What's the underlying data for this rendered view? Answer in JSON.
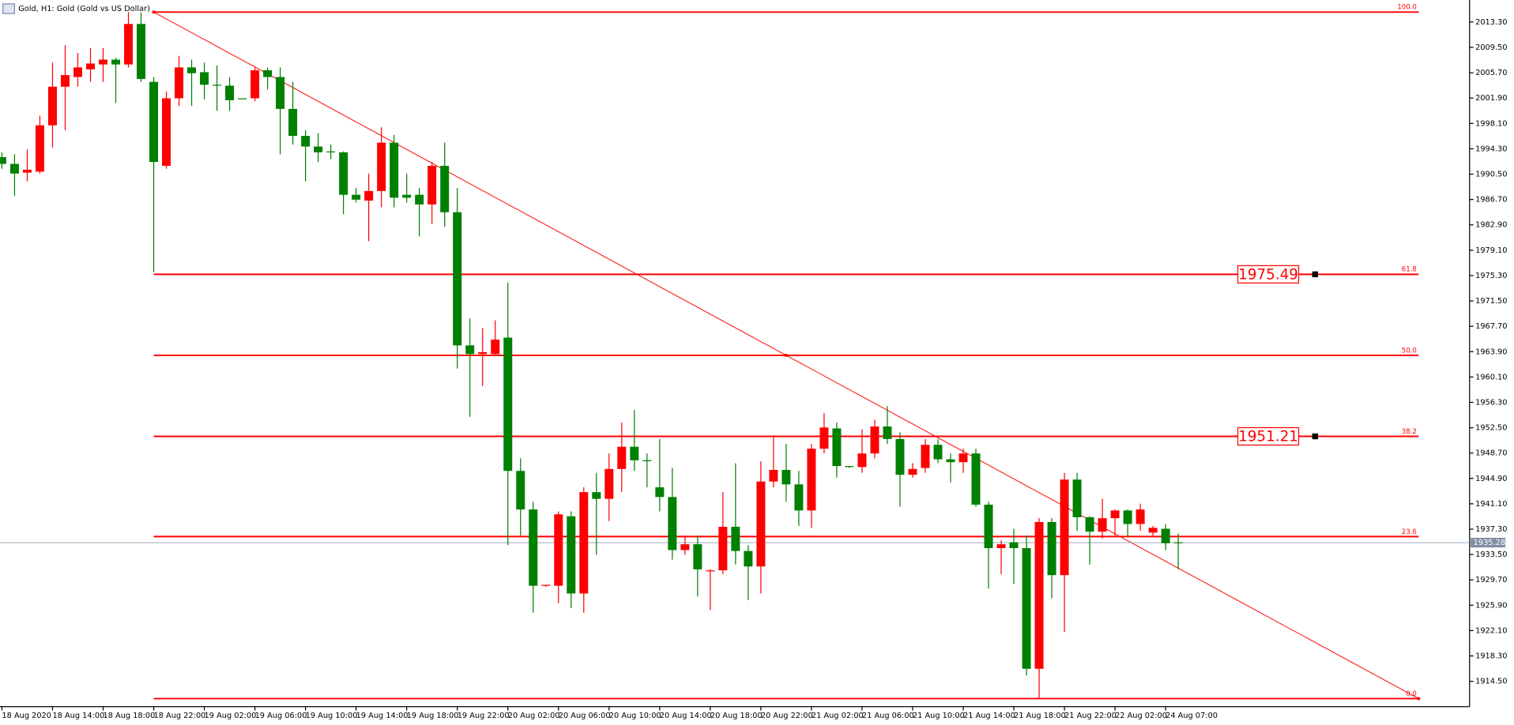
{
  "chart_data": {
    "type": "candlestick",
    "title": "Gold, H1:  Gold (Gold vs US Dollar)",
    "categories": [
      "18 Aug 2020",
      null,
      null,
      null,
      "18 Aug 14:00",
      null,
      null,
      null,
      "18 Aug 18:00",
      null,
      null,
      null,
      "18 Aug 22:00",
      null,
      null,
      null,
      "19 Aug 02:00",
      null,
      null,
      null,
      "19 Aug 06:00",
      null,
      null,
      null,
      "19 Aug 10:00",
      null,
      null,
      null,
      "19 Aug 14:00",
      null,
      null,
      null,
      "19 Aug 18:00",
      null,
      null,
      null,
      "19 Aug 22:00",
      null,
      null,
      null,
      "20 Aug 02:00",
      null,
      null,
      null,
      "20 Aug 06:00",
      null,
      null,
      null,
      "20 Aug 10:00",
      null,
      null,
      null,
      "20 Aug 14:00",
      null,
      null,
      null,
      "20 Aug 18:00",
      null,
      null,
      null,
      "20 Aug 22:00",
      null,
      null,
      null,
      "21 Aug 02:00",
      null,
      null,
      null,
      "21 Aug 06:00",
      null,
      null,
      null,
      "21 Aug 10:00",
      null,
      null,
      null,
      "21 Aug 14:00",
      null,
      null,
      null,
      "21 Aug 18:00",
      null,
      null,
      null,
      "21 Aug 22:00",
      null,
      null,
      null,
      "22 Aug 02:00",
      null,
      null,
      null,
      "24 Aug 07:00",
      null
    ],
    "open": [
      1993.05,
      1992.04,
      1990.73,
      1990.88,
      1997.82,
      2003.61,
      2005.06,
      2006.21,
      2006.94,
      2007.66,
      2006.94,
      2013.01,
      2004.33,
      1991.75,
      2001.87,
      2006.5,
      2005.78,
      2003.9,
      2003.76,
      2001.87,
      2001.87,
      2006.07,
      2005.06,
      2000.28,
      1996.23,
      1994.64,
      1993.91,
      1993.77,
      1987.41,
      1986.54,
      1987.98,
      1995.22,
      1987.41,
      1987.41,
      1985.96,
      1991.75,
      1984.8,
      1964.84,
      1963.54,
      1963.54,
      1966.0,
      1946.03,
      1940.25,
      1928.82,
      1928.82,
      1939.23,
      1927.66,
      1942.85,
      1941.84,
      1946.32,
      1949.65,
      1947.63,
      1943.57,
      1942.12,
      1934.17,
      1935.04,
      1930.99,
      1931.13,
      1937.65,
      1934.03,
      1931.71,
      1944.44,
      1946.18,
      1944.01,
      1940.1,
      1949.36,
      1952.4,
      1946.76,
      1946.61,
      1948.64,
      1952.69,
      1950.81,
      1945.45,
      1946.47,
      1949.94,
      1947.77,
      1947.34,
      1948.64,
      1940.97,
      1934.46,
      1935.33,
      1934.46,
      1916.38,
      1938.37,
      1930.41,
      1944.73,
      1939.09,
      1936.92,
      1938.94,
      1940.1,
      1938.08,
      1936.78,
      1937.36,
      1935.33
    ],
    "high": [
      1993.77,
      1993.48,
      1994.2,
      1999.27,
      2007.23,
      2009.83,
      2008.67,
      2009.4,
      2009.4,
      2007.95,
      2014.79,
      2014.75,
      2005.06,
      2002.89,
      2008.24,
      2007.66,
      2007.23,
      2006.79,
      2005.06,
      2001.87,
      2006.5,
      2006.5,
      2006.5,
      2004.33,
      1997.1,
      1996.67,
      1994.93,
      1993.91,
      1988.42,
      1990.59,
      1997.53,
      1996.38,
      1990.59,
      1988.42,
      1992.33,
      1995.22,
      1988.42,
      1968.89,
      1967.44,
      1968.6,
      1974.24,
      1947.91,
      1941.4,
      1928.96,
      1939.96,
      1939.96,
      1943.57,
      1945.74,
      1948.64,
      1953.27,
      1955.15,
      1948.64,
      1950.81,
      1946.47,
      1936.34,
      1936.34,
      1931.28,
      1942.85,
      1947.19,
      1934.9,
      1947.48,
      1951.24,
      1950.08,
      1946.03,
      1950.08,
      1954.72,
      1953.27,
      1946.76,
      1952.25,
      1953.7,
      1955.72,
      1951.82,
      1947.19,
      1950.81,
      1950.81,
      1948.64,
      1949.36,
      1949.36,
      1941.4,
      1935.62,
      1937.36,
      1936.34,
      1938.94,
      1938.94,
      1945.74,
      1945.74,
      1939.23,
      1941.84,
      1940.25,
      1940.25,
      1941.12,
      1937.79,
      1938.08,
      1936.63
    ],
    "low": [
      1991.31,
      1987.26,
      1989.43,
      1990.59,
      1994.49,
      1997.1,
      2003.61,
      2004.33,
      2004.33,
      2001.15,
      2006.5,
      2004.33,
      1975.83,
      1991.31,
      2000.71,
      2000.71,
      2001.73,
      1999.99,
      1999.99,
      2001.73,
      2001.44,
      2003.18,
      1993.48,
      1994.93,
      1989.43,
      1992.33,
      1992.76,
      1984.51,
      1986.25,
      1980.46,
      1985.52,
      1985.52,
      1986.25,
      1981.19,
      1983.07,
      1982.63,
      1961.37,
      1954.13,
      1958.76,
      1963.39,
      1934.9,
      1936.34,
      1924.77,
      1928.67,
      1926.22,
      1925.49,
      1924.77,
      1933.45,
      1938.51,
      1942.85,
      1946.03,
      1943.57,
      1939.96,
      1932.73,
      1933.45,
      1927.23,
      1925.2,
      1930.55,
      1932.0,
      1926.65,
      1927.66,
      1943.57,
      1941.4,
      1937.79,
      1937.5,
      1948.64,
      1945.02,
      1946.47,
      1945.74,
      1947.91,
      1950.08,
      1940.68,
      1945.02,
      1945.74,
      1947.19,
      1944.3,
      1945.74,
      1940.68,
      1928.39,
      1930.55,
      1929.11,
      1915.37,
      1911.91,
      1926.94,
      1921.88,
      1937.07,
      1932.0,
      1935.91,
      1936.34,
      1936.2,
      1937.07,
      1936.34,
      1934.17,
      1931.28
    ],
    "close": [
      1992.04,
      1990.59,
      1991.17,
      1997.82,
      2003.61,
      2005.35,
      2006.5,
      2007.08,
      2007.66,
      2006.94,
      2013.01,
      2004.77,
      1992.33,
      2001.87,
      2006.5,
      2005.63,
      2003.9,
      2003.76,
      2001.58,
      2001.73,
      2006.07,
      2005.06,
      2000.28,
      1996.23,
      1994.64,
      1993.77,
      1993.77,
      1987.41,
      1986.68,
      1987.98,
      1995.22,
      1986.97,
      1986.97,
      1985.96,
      1991.75,
      1984.8,
      1964.84,
      1963.54,
      1963.83,
      1965.71,
      1946.03,
      1940.25,
      1928.82,
      1928.96,
      1939.52,
      1927.66,
      1942.85,
      1941.84,
      1946.32,
      1949.65,
      1947.63,
      1947.48,
      1942.12,
      1934.17,
      1935.04,
      1931.28,
      1931.13,
      1937.65,
      1934.03,
      1931.71,
      1944.44,
      1946.18,
      1944.01,
      1940.1,
      1949.36,
      1952.54,
      1946.76,
      1946.61,
      1948.64,
      1952.69,
      1950.81,
      1945.45,
      1946.32,
      1949.94,
      1947.77,
      1947.34,
      1948.64,
      1940.97,
      1934.46,
      1935.04,
      1934.46,
      1916.38,
      1938.37,
      1930.41,
      1944.73,
      1939.09,
      1936.92,
      1938.94,
      1940.1,
      1938.08,
      1940.25,
      1937.5,
      1935.19,
      1935.28
    ],
    "up_color": "#ff0000",
    "down_color": "#008000",
    "ylim": [
      1910.7,
      2016.6
    ],
    "yticks": [
      {
        "value": 2013.3,
        "label": "2013.30"
      },
      {
        "value": 2009.5,
        "label": "2009.50"
      },
      {
        "value": 2005.7,
        "label": "2005.70"
      },
      {
        "value": 2001.9,
        "label": "2001.90"
      },
      {
        "value": 1998.1,
        "label": "1998.10"
      },
      {
        "value": 1994.3,
        "label": "1994.30"
      },
      {
        "value": 1990.5,
        "label": "1990.50"
      },
      {
        "value": 1986.7,
        "label": "1986.70"
      },
      {
        "value": 1982.9,
        "label": "1982.90"
      },
      {
        "value": 1979.1,
        "label": "1979.10"
      },
      {
        "value": 1975.3,
        "label": "1975.30"
      },
      {
        "value": 1971.5,
        "label": "1971.50"
      },
      {
        "value": 1967.7,
        "label": "1967.70"
      },
      {
        "value": 1963.9,
        "label": "1963.90"
      },
      {
        "value": 1960.1,
        "label": "1960.10"
      },
      {
        "value": 1956.3,
        "label": "1956.30"
      },
      {
        "value": 1952.5,
        "label": "1952.50"
      },
      {
        "value": 1948.7,
        "label": "1948.70"
      },
      {
        "value": 1944.9,
        "label": "1944.90"
      },
      {
        "value": 1941.1,
        "label": "1941.10"
      },
      {
        "value": 1937.3,
        "label": "1937.30"
      },
      {
        "value": 1933.5,
        "label": "1933.50"
      },
      {
        "value": 1929.7,
        "label": "1929.70"
      },
      {
        "value": 1925.9,
        "label": "1925.90"
      },
      {
        "value": 1922.1,
        "label": "1922.10"
      },
      {
        "value": 1918.3,
        "label": "1918.30"
      },
      {
        "value": 1914.5,
        "label": "1914.50"
      }
    ],
    "last_price": 1935.28,
    "fib": {
      "color": "#ff0000",
      "from": 12,
      "to": 112,
      "levels": [
        {
          "level": "100.0",
          "price": 2014.79
        },
        {
          "level": "61.8",
          "price": 1975.49,
          "boxed": true
        },
        {
          "level": "50.0",
          "price": 1963.35
        },
        {
          "level": "38.2",
          "price": 1951.21,
          "boxed": true
        },
        {
          "level": "23.6",
          "price": 1936.19
        },
        {
          "level": "0.0",
          "price": 1911.91
        }
      ]
    }
  }
}
